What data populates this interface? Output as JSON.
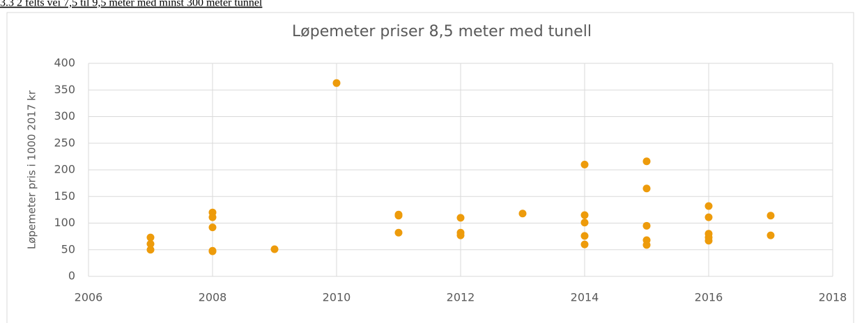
{
  "heading": "3.3 2 felts vei 7,5 til 9,5 meter med minst 300 meter tunnel",
  "chart_data": {
    "type": "scatter",
    "title": "Løpemeter priser 8,5 meter  med tunell",
    "y_label": "Løpemeter pris i 1000 2017 kr",
    "x": [
      2007,
      2007,
      2007,
      2008,
      2008,
      2008,
      2008,
      2008,
      2009,
      2010,
      2011,
      2011,
      2011,
      2012,
      2012,
      2012,
      2013,
      2014,
      2014,
      2014,
      2014,
      2014,
      2015,
      2015,
      2015,
      2015,
      2015,
      2016,
      2016,
      2016,
      2016,
      2016,
      2017,
      2017
    ],
    "values": [
      73,
      61,
      50,
      120,
      111,
      92,
      48,
      47,
      51,
      363,
      116,
      114,
      82,
      110,
      82,
      77,
      118,
      210,
      115,
      101,
      76,
      60,
      216,
      165,
      95,
      68,
      59,
      132,
      111,
      80,
      73,
      67,
      114,
      77
    ],
    "color": "#ed9b0b",
    "xlim": [
      2006,
      2018
    ],
    "xticks": [
      2006,
      2008,
      2010,
      2012,
      2014,
      2016,
      2018
    ],
    "ylim": [
      0,
      400
    ],
    "yticks": [
      0,
      50,
      100,
      150,
      200,
      250,
      300,
      350,
      400
    ],
    "grid": true
  }
}
